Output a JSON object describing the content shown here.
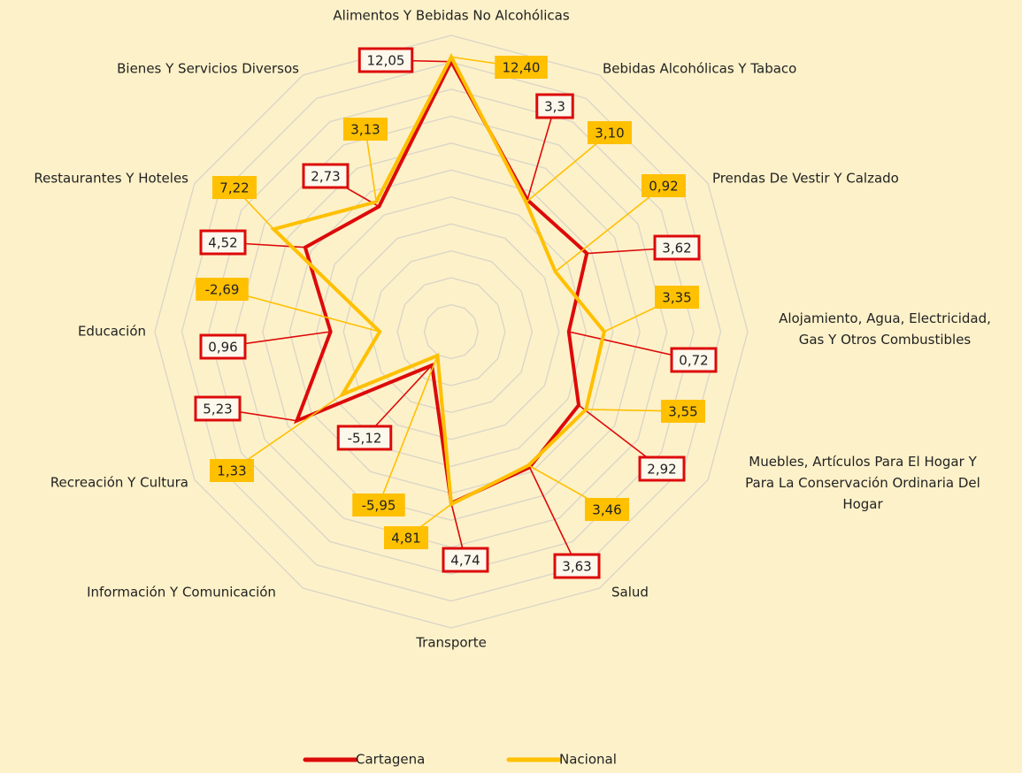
{
  "chart_data": {
    "type": "radar",
    "categories": [
      "Alimentos Y Bebidas No Alcohólicas",
      "Bebidas Alcohólicas Y Tabaco",
      "Prendas De Vestir Y Calzado",
      "Alojamiento, Agua, Electricidad, Gas Y Otros Combustibles",
      "Muebles, Artículos Para El Hogar Y Para La Conservación Ordinaria Del Hogar",
      "Salud",
      "Transporte",
      "Información Y Comunicación",
      "Recreación Y Cultura",
      "Educación",
      "Restaurantes Y Hoteles",
      "Bienes Y Servicios Diversos"
    ],
    "series": [
      {
        "name": "Cartagena",
        "color": "#dd0a0a",
        "values": [
          12.05,
          3.3,
          3.62,
          0.72,
          2.92,
          3.63,
          4.74,
          -5.12,
          5.23,
          0.96,
          4.52,
          2.73
        ],
        "value_labels": [
          "12,05",
          "3,3",
          "3,62",
          "0,72",
          "2,92",
          "3,63",
          "4,74",
          "-5,12",
          "5,23",
          "0,96",
          "4,52",
          "2,73"
        ]
      },
      {
        "name": "Nacional",
        "color": "#ffc000",
        "values": [
          12.4,
          3.1,
          0.92,
          3.35,
          3.55,
          3.46,
          4.81,
          -5.95,
          1.33,
          -2.69,
          7.22,
          3.13
        ],
        "value_labels": [
          "12,40",
          "3,10",
          "0,92",
          "3,35",
          "3,55",
          "3,46",
          "4,81",
          "-5,95",
          "1,33",
          "-2,69",
          "7,22",
          "3,13"
        ]
      }
    ],
    "ylim": [
      -8,
      14
    ],
    "yticks": [
      -8,
      -6,
      -4,
      -2,
      0,
      2,
      4,
      6,
      8,
      10,
      12,
      14
    ],
    "grid": true,
    "legend": "bottom"
  }
}
